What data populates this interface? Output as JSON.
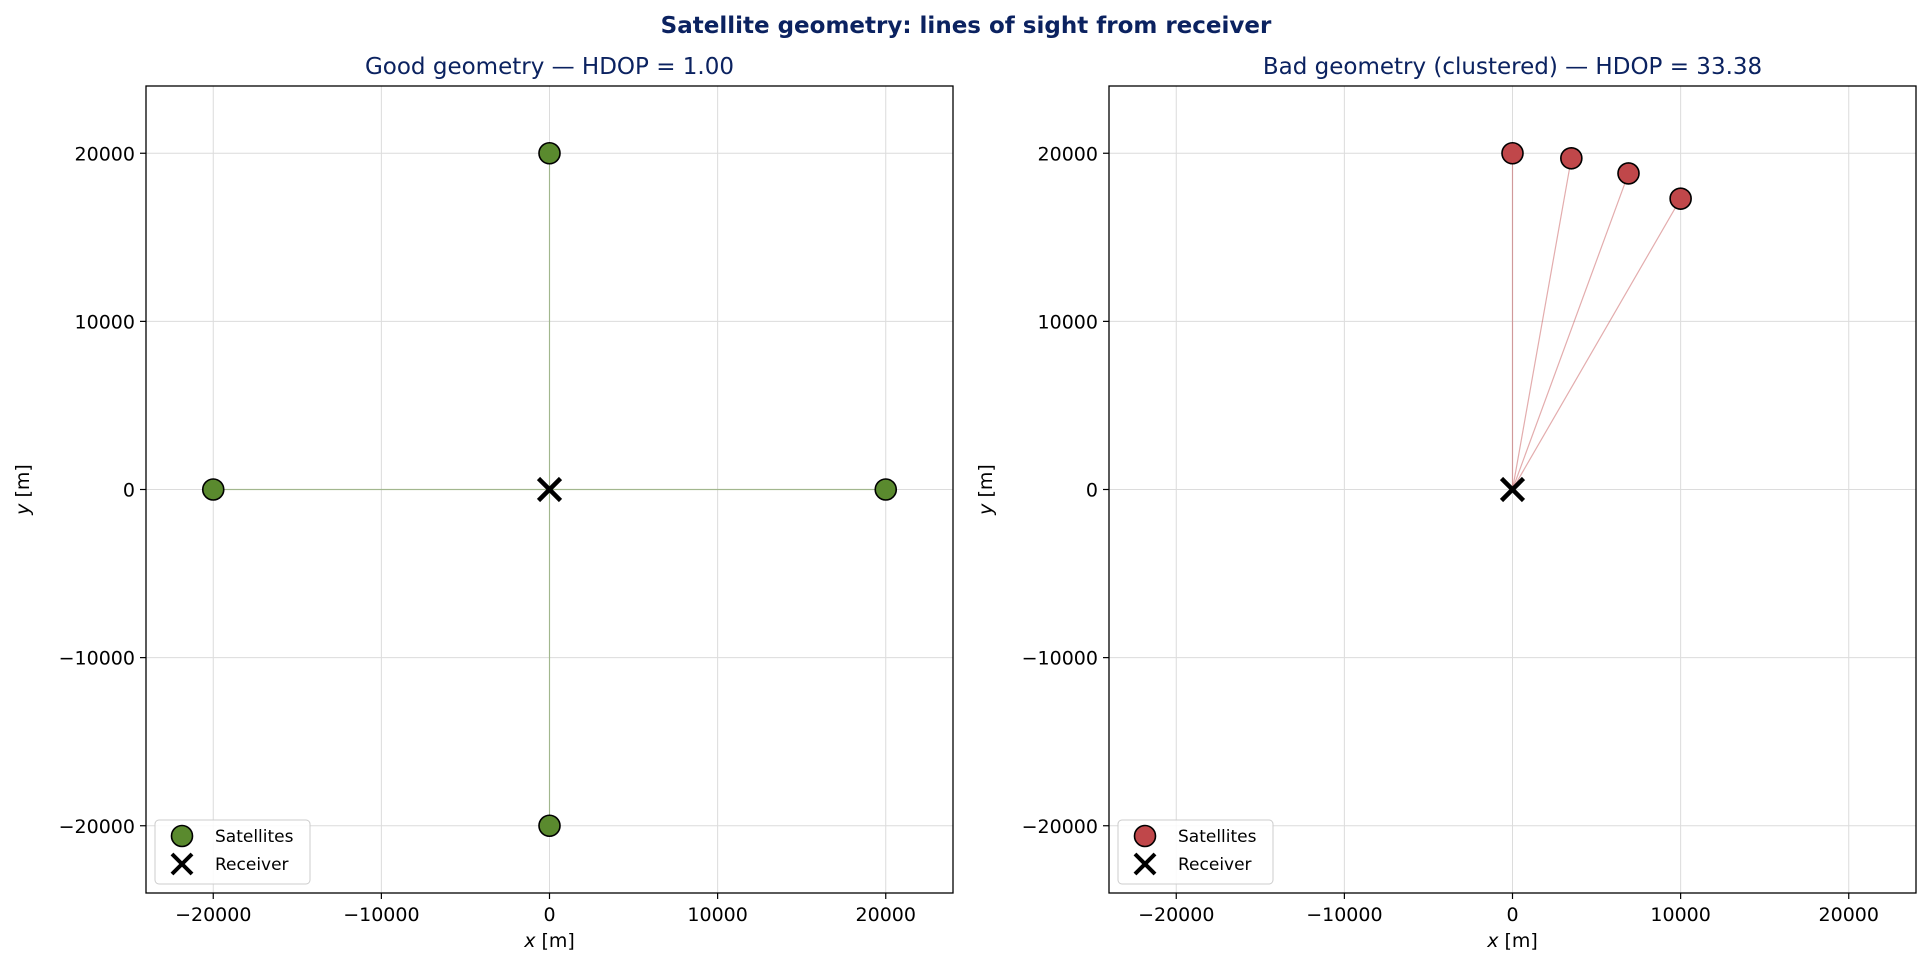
{
  "figure": {
    "title": "Satellite geometry: lines of sight from receiver",
    "title_color": "#0b2260"
  },
  "chart_data": [
    {
      "type": "scatter",
      "title": "Good geometry — HDOP = 1.00",
      "xlabel_var": "x",
      "xlabel_unit": " [m]",
      "ylabel_var": "y",
      "ylabel_unit": " [m]",
      "xlim": [
        -24000,
        24000
      ],
      "ylim": [
        -24000,
        24000
      ],
      "xticks": [
        -20000,
        -10000,
        0,
        10000,
        20000
      ],
      "yticks": [
        -20000,
        -10000,
        0,
        10000,
        20000
      ],
      "grid": true,
      "legend_position": "lower-left",
      "marker_color": "#5a8a2e",
      "line_color": "#5a8a2e",
      "series": [
        {
          "name": "Satellites",
          "marker": "circle",
          "points": [
            {
              "x": 0,
              "y": 20000
            },
            {
              "x": -20000,
              "y": 0
            },
            {
              "x": 20000,
              "y": 0
            },
            {
              "x": 0,
              "y": -20000
            }
          ]
        },
        {
          "name": "Receiver",
          "marker": "x",
          "points": [
            {
              "x": 0,
              "y": 0
            }
          ]
        }
      ]
    },
    {
      "type": "scatter",
      "title": "Bad geometry (clustered) — HDOP = 33.38",
      "xlabel_var": "x",
      "xlabel_unit": " [m]",
      "ylabel_var": "y",
      "ylabel_unit": " [m]",
      "xlim": [
        -24000,
        24000
      ],
      "ylim": [
        -24000,
        24000
      ],
      "xticks": [
        -20000,
        -10000,
        0,
        10000,
        20000
      ],
      "yticks": [
        -20000,
        -10000,
        0,
        10000,
        20000
      ],
      "grid": true,
      "legend_position": "lower-left",
      "marker_color": "#c0474a",
      "line_color": "#c0474a",
      "series": [
        {
          "name": "Satellites",
          "marker": "circle",
          "points": [
            {
              "x": 0,
              "y": 20000
            },
            {
              "x": 3500,
              "y": 19700
            },
            {
              "x": 6900,
              "y": 18800
            },
            {
              "x": 10000,
              "y": 17300
            }
          ]
        },
        {
          "name": "Receiver",
          "marker": "x",
          "points": [
            {
              "x": 0,
              "y": 0
            }
          ]
        }
      ]
    }
  ]
}
